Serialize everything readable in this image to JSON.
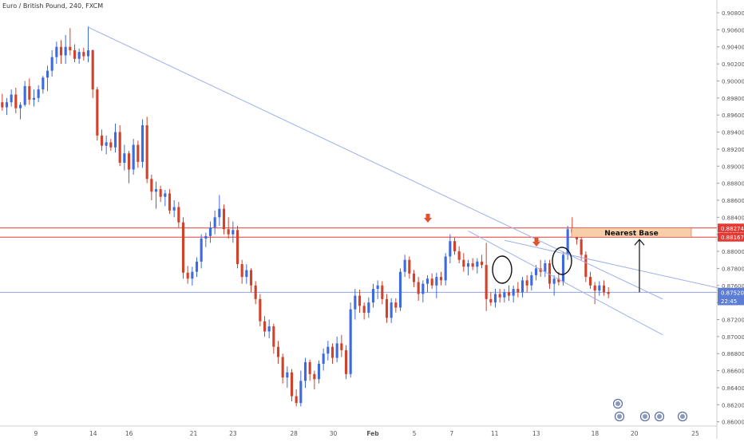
{
  "header": {
    "title": "Euro / British Pound, 240, FXCM"
  },
  "chart_data": {
    "type": "candlestick",
    "title": "Euro / British Pound, 240, FXCM",
    "ylim": [
      0.8595,
      0.9095
    ],
    "price_ticks": [
      "0.90800",
      "0.90600",
      "0.90400",
      "0.90200",
      "0.90000",
      "0.89800",
      "0.89600",
      "0.89400",
      "0.89200",
      "0.89000",
      "0.88800",
      "0.88600",
      "0.88400",
      "0.88200",
      "0.88000",
      "0.87800",
      "0.87600",
      "0.87400",
      "0.87200",
      "0.87000",
      "0.86800",
      "0.86600",
      "0.86400",
      "0.86200",
      "0.86000"
    ],
    "price_tick_values": [
      0.908,
      0.906,
      0.904,
      0.902,
      0.9,
      0.898,
      0.896,
      0.894,
      0.892,
      0.89,
      0.888,
      0.886,
      0.884,
      0.882,
      0.88,
      0.878,
      0.876,
      0.874,
      0.872,
      0.87,
      0.868,
      0.866,
      0.864,
      0.862,
      0.86
    ],
    "date_labels": [
      {
        "label": "9",
        "pos": 0.05
      },
      {
        "label": "14",
        "pos": 0.13
      },
      {
        "label": "16",
        "pos": 0.18
      },
      {
        "label": "21",
        "pos": 0.27
      },
      {
        "label": "23",
        "pos": 0.325
      },
      {
        "label": "28",
        "pos": 0.41
      },
      {
        "label": "30",
        "pos": 0.465
      },
      {
        "label": "Feb",
        "pos": 0.52
      },
      {
        "label": "5",
        "pos": 0.578
      },
      {
        "label": "7",
        "pos": 0.63
      },
      {
        "label": "11",
        "pos": 0.69
      },
      {
        "label": "13",
        "pos": 0.748
      },
      {
        "label": "18",
        "pos": 0.83
      },
      {
        "label": "20",
        "pos": 0.885
      },
      {
        "label": "25",
        "pos": 0.97
      }
    ],
    "price_labels": [
      {
        "label": "0.88274",
        "value": 0.88274,
        "color": "#e53935"
      },
      {
        "label": "0.88167",
        "value": 0.88167,
        "color": "#e53935"
      },
      {
        "label": "0.87520",
        "value": 0.8752,
        "color": "#5b7ed4"
      },
      {
        "label": "22:45",
        "value": 0.8742,
        "color": "#5b7ed4"
      }
    ],
    "resistance_lines": [
      0.88274,
      0.88167
    ],
    "current_price": 0.8752,
    "annotation": {
      "text": "Nearest Base",
      "color": "#f6cfa8"
    },
    "candles": [
      [
        0.8975,
        0.8985,
        0.8965,
        0.8969
      ],
      [
        0.8969,
        0.898,
        0.896,
        0.8975
      ],
      [
        0.8975,
        0.899,
        0.897,
        0.8984
      ],
      [
        0.8984,
        0.8992,
        0.8962,
        0.8968
      ],
      [
        0.8968,
        0.8975,
        0.8955,
        0.8972
      ],
      [
        0.8972,
        0.9,
        0.897,
        0.8994
      ],
      [
        0.8994,
        0.9003,
        0.8972,
        0.8978
      ],
      [
        0.8978,
        0.899,
        0.897,
        0.898
      ],
      [
        0.898,
        0.8995,
        0.8975,
        0.899
      ],
      [
        0.899,
        0.9006,
        0.8985,
        0.9004
      ],
      [
        0.9004,
        0.9018,
        0.8988,
        0.9012
      ],
      [
        0.9012,
        0.9036,
        0.9005,
        0.9028
      ],
      [
        0.9028,
        0.9046,
        0.902,
        0.904
      ],
      [
        0.904,
        0.9048,
        0.902,
        0.903
      ],
      [
        0.903,
        0.9054,
        0.902,
        0.904
      ],
      [
        0.904,
        0.9062,
        0.903,
        0.9036
      ],
      [
        0.9036,
        0.9043,
        0.9022,
        0.9026
      ],
      [
        0.9026,
        0.9038,
        0.902,
        0.9034
      ],
      [
        0.9034,
        0.9039,
        0.9024,
        0.9029
      ],
      [
        0.9029,
        0.9064,
        0.9022,
        0.9036
      ],
      [
        0.9036,
        0.9037,
        0.898,
        0.899
      ],
      [
        0.899,
        0.8993,
        0.893,
        0.8936
      ],
      [
        0.8936,
        0.8943,
        0.8918,
        0.8924
      ],
      [
        0.8924,
        0.8936,
        0.8914,
        0.8928
      ],
      [
        0.8928,
        0.8932,
        0.8918,
        0.8922
      ],
      [
        0.8922,
        0.895,
        0.8916,
        0.894
      ],
      [
        0.894,
        0.8948,
        0.89,
        0.8904
      ],
      [
        0.8904,
        0.8925,
        0.8895,
        0.8915
      ],
      [
        0.8915,
        0.8918,
        0.888,
        0.8896
      ],
      [
        0.8896,
        0.8932,
        0.889,
        0.8925
      ],
      [
        0.8925,
        0.893,
        0.8898,
        0.8905
      ],
      [
        0.8905,
        0.8955,
        0.8898,
        0.8948
      ],
      [
        0.8948,
        0.8958,
        0.888,
        0.8885
      ],
      [
        0.8885,
        0.889,
        0.886,
        0.887
      ],
      [
        0.887,
        0.8882,
        0.885,
        0.8873
      ],
      [
        0.8873,
        0.8877,
        0.8858,
        0.8864
      ],
      [
        0.8864,
        0.8872,
        0.8853,
        0.8868
      ],
      [
        0.8868,
        0.8873,
        0.8844,
        0.8848
      ],
      [
        0.8848,
        0.886,
        0.884,
        0.8852
      ],
      [
        0.8852,
        0.8858,
        0.8828,
        0.8834
      ],
      [
        0.8834,
        0.884,
        0.8768,
        0.8775
      ],
      [
        0.8775,
        0.8783,
        0.8762,
        0.8768
      ],
      [
        0.8768,
        0.8782,
        0.876,
        0.8776
      ],
      [
        0.8776,
        0.8793,
        0.877,
        0.8788
      ],
      [
        0.8788,
        0.882,
        0.878,
        0.8815
      ],
      [
        0.8815,
        0.8822,
        0.8805,
        0.8818
      ],
      [
        0.8818,
        0.8835,
        0.881,
        0.8828
      ],
      [
        0.8828,
        0.8848,
        0.882,
        0.884
      ],
      [
        0.884,
        0.8866,
        0.883,
        0.885
      ],
      [
        0.885,
        0.8855,
        0.882,
        0.8826
      ],
      [
        0.8826,
        0.884,
        0.8815,
        0.882
      ],
      [
        0.882,
        0.8835,
        0.881,
        0.8825
      ],
      [
        0.8825,
        0.883,
        0.878,
        0.8785
      ],
      [
        0.8785,
        0.879,
        0.8762,
        0.877
      ],
      [
        0.877,
        0.8785,
        0.8762,
        0.8778
      ],
      [
        0.8778,
        0.878,
        0.8752,
        0.876
      ],
      [
        0.876,
        0.8765,
        0.8738,
        0.8744
      ],
      [
        0.8744,
        0.875,
        0.8712,
        0.8718
      ],
      [
        0.8718,
        0.8724,
        0.87,
        0.8706
      ],
      [
        0.8706,
        0.872,
        0.8698,
        0.8712
      ],
      [
        0.8712,
        0.8715,
        0.868,
        0.8688
      ],
      [
        0.8688,
        0.8695,
        0.8668,
        0.8676
      ],
      [
        0.8676,
        0.868,
        0.8645,
        0.8652
      ],
      [
        0.8652,
        0.8665,
        0.864,
        0.8658
      ],
      [
        0.8658,
        0.8662,
        0.8624,
        0.863
      ],
      [
        0.863,
        0.8638,
        0.8618,
        0.8622
      ],
      [
        0.8622,
        0.866,
        0.8618,
        0.8648
      ],
      [
        0.8648,
        0.8675,
        0.864,
        0.867
      ],
      [
        0.867,
        0.8673,
        0.8648,
        0.8656
      ],
      [
        0.8656,
        0.866,
        0.8638,
        0.865
      ],
      [
        0.865,
        0.8672,
        0.8645,
        0.8668
      ],
      [
        0.8668,
        0.8686,
        0.866,
        0.868
      ],
      [
        0.868,
        0.8695,
        0.8672,
        0.8688
      ],
      [
        0.8688,
        0.8692,
        0.8668,
        0.8675
      ],
      [
        0.8675,
        0.87,
        0.867,
        0.8692
      ],
      [
        0.8692,
        0.8702,
        0.8676,
        0.8684
      ],
      [
        0.8684,
        0.869,
        0.865,
        0.8656
      ],
      [
        0.8656,
        0.874,
        0.8652,
        0.8732
      ],
      [
        0.8732,
        0.8756,
        0.872,
        0.8748
      ],
      [
        0.8748,
        0.8755,
        0.8728,
        0.8736
      ],
      [
        0.8736,
        0.874,
        0.872,
        0.8728
      ],
      [
        0.8728,
        0.8746,
        0.8722,
        0.874
      ],
      [
        0.874,
        0.8762,
        0.8734,
        0.8756
      ],
      [
        0.8756,
        0.8766,
        0.8744,
        0.876
      ],
      [
        0.876,
        0.8765,
        0.8738,
        0.8744
      ],
      [
        0.8744,
        0.875,
        0.8716,
        0.8722
      ],
      [
        0.8722,
        0.8745,
        0.8716,
        0.874
      ],
      [
        0.874,
        0.8745,
        0.8728,
        0.8734
      ],
      [
        0.8734,
        0.878,
        0.873,
        0.8776
      ],
      [
        0.8776,
        0.8796,
        0.877,
        0.879
      ],
      [
        0.879,
        0.8794,
        0.8768,
        0.8774
      ],
      [
        0.8774,
        0.8778,
        0.8758,
        0.8764
      ],
      [
        0.8764,
        0.877,
        0.8742,
        0.875
      ],
      [
        0.875,
        0.8766,
        0.874,
        0.8762
      ],
      [
        0.8762,
        0.8772,
        0.8752,
        0.8768
      ],
      [
        0.8768,
        0.8774,
        0.8756,
        0.876
      ],
      [
        0.876,
        0.8775,
        0.8745,
        0.877
      ],
      [
        0.877,
        0.8776,
        0.876,
        0.8766
      ],
      [
        0.8766,
        0.8798,
        0.876,
        0.8794
      ],
      [
        0.8794,
        0.882,
        0.8786,
        0.8812
      ],
      [
        0.8812,
        0.8816,
        0.8796,
        0.88
      ],
      [
        0.88,
        0.8806,
        0.8786,
        0.879
      ],
      [
        0.879,
        0.8798,
        0.8776,
        0.8782
      ],
      [
        0.8782,
        0.879,
        0.8772,
        0.8786
      ],
      [
        0.8786,
        0.8792,
        0.8778,
        0.8782
      ],
      [
        0.8782,
        0.8792,
        0.8774,
        0.8788
      ],
      [
        0.8788,
        0.8796,
        0.878,
        0.8784
      ],
      [
        0.8784,
        0.881,
        0.873,
        0.8744
      ],
      [
        0.8744,
        0.8752,
        0.8736,
        0.874
      ],
      [
        0.874,
        0.8756,
        0.8734,
        0.875
      ],
      [
        0.875,
        0.8756,
        0.874,
        0.8746
      ],
      [
        0.8746,
        0.8756,
        0.874,
        0.8752
      ],
      [
        0.8752,
        0.876,
        0.8742,
        0.8748
      ],
      [
        0.8748,
        0.876,
        0.874,
        0.8756
      ],
      [
        0.8756,
        0.8764,
        0.8746,
        0.8752
      ],
      [
        0.8752,
        0.877,
        0.8746,
        0.8766
      ],
      [
        0.8766,
        0.8772,
        0.8752,
        0.876
      ],
      [
        0.876,
        0.8776,
        0.8754,
        0.8772
      ],
      [
        0.8772,
        0.8784,
        0.8766,
        0.878
      ],
      [
        0.878,
        0.879,
        0.877,
        0.8776
      ],
      [
        0.8776,
        0.879,
        0.877,
        0.8786
      ],
      [
        0.8786,
        0.879,
        0.8756,
        0.8762
      ],
      [
        0.8762,
        0.8772,
        0.8748,
        0.8768
      ],
      [
        0.8768,
        0.8776,
        0.876,
        0.8764
      ],
      [
        0.8764,
        0.88,
        0.876,
        0.8796
      ],
      [
        0.8796,
        0.883,
        0.879,
        0.8826
      ],
      [
        0.8826,
        0.884,
        0.8818,
        0.8822
      ],
      [
        0.8822,
        0.8828,
        0.8808,
        0.8814
      ],
      [
        0.8814,
        0.882,
        0.879,
        0.8796
      ],
      [
        0.8796,
        0.88,
        0.8764,
        0.877
      ],
      [
        0.877,
        0.8776,
        0.8756,
        0.876
      ],
      [
        0.876,
        0.8764,
        0.8738,
        0.8754
      ],
      [
        0.8754,
        0.8765,
        0.8748,
        0.876
      ],
      [
        0.876,
        0.8766,
        0.8748,
        0.8752
      ],
      [
        0.8752,
        0.8758,
        0.8745,
        0.875
      ]
    ]
  }
}
